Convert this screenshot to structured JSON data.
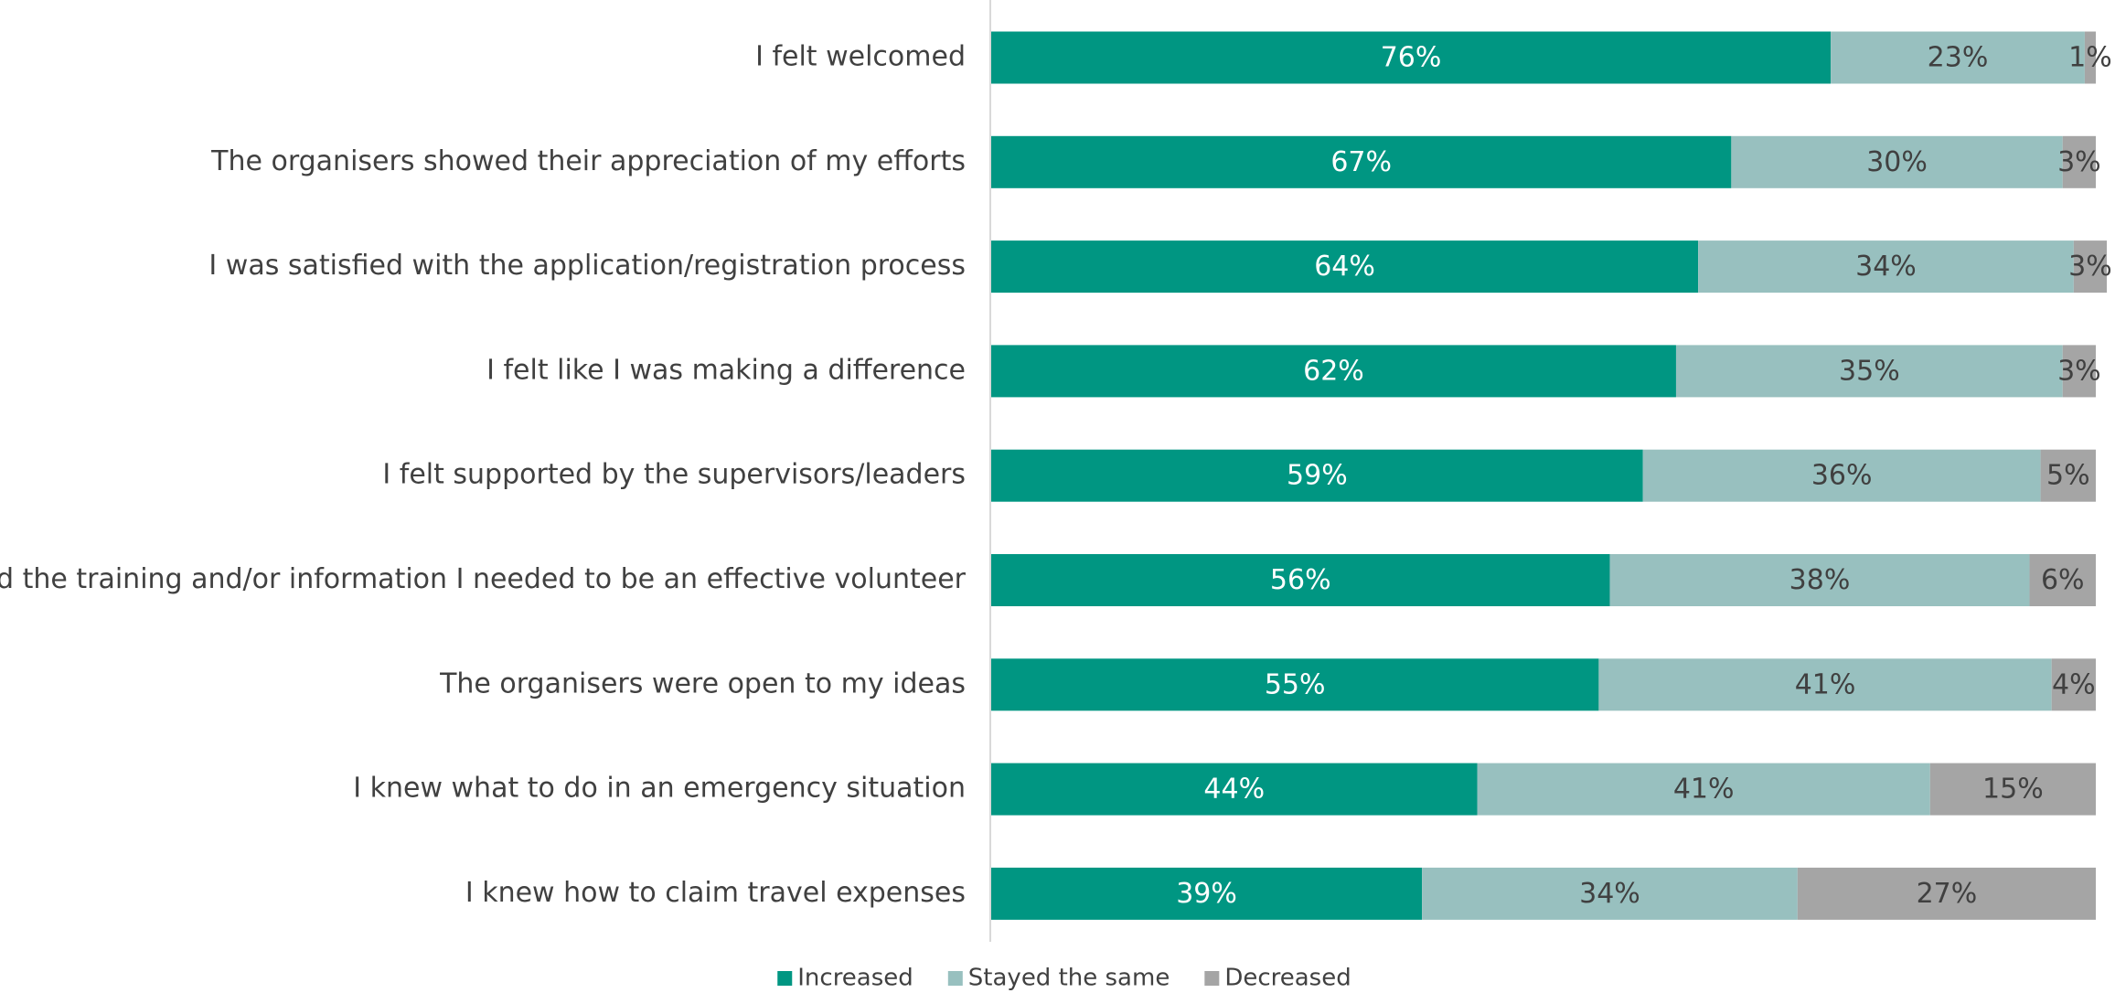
{
  "chart_data": {
    "type": "stacked_barh",
    "categories": [
      "I felt welcomed",
      "The organisers showed their appreciation of my efforts",
      "I was satisfied with the application/registration process",
      "I felt like I was making a difference",
      "I felt supported by the supervisors/leaders",
      "I received the training and/or information I needed to be an effective volunteer",
      "The organisers were open to my ideas",
      "I knew what to do in an emergency situation",
      "I knew how to claim travel expenses"
    ],
    "series": [
      {
        "name": "Increased",
        "color": "#009682",
        "values": [
          76,
          67,
          64,
          62,
          59,
          56,
          55,
          44,
          39
        ],
        "value_labels": [
          "76%",
          "67%",
          "64%",
          "62%",
          "59%",
          "56%",
          "55%",
          "44%",
          "39%"
        ]
      },
      {
        "name": "Stayed the same",
        "color": "#98c0bf",
        "values": [
          23,
          30,
          34,
          35,
          36,
          38,
          41,
          41,
          34
        ],
        "value_labels": [
          "23%",
          "30%",
          "34%",
          "35%",
          "36%",
          "38%",
          "41%",
          "41%",
          "34%"
        ]
      },
      {
        "name": "Decreased",
        "color": "#a5a5a5",
        "values": [
          1,
          3,
          3,
          3,
          5,
          6,
          4,
          15,
          27
        ],
        "value_labels": [
          "1%",
          "3%",
          "3%",
          "3%",
          "5%",
          "6%",
          "4%",
          "15%",
          "27%"
        ]
      }
    ],
    "legend": "bottom"
  }
}
